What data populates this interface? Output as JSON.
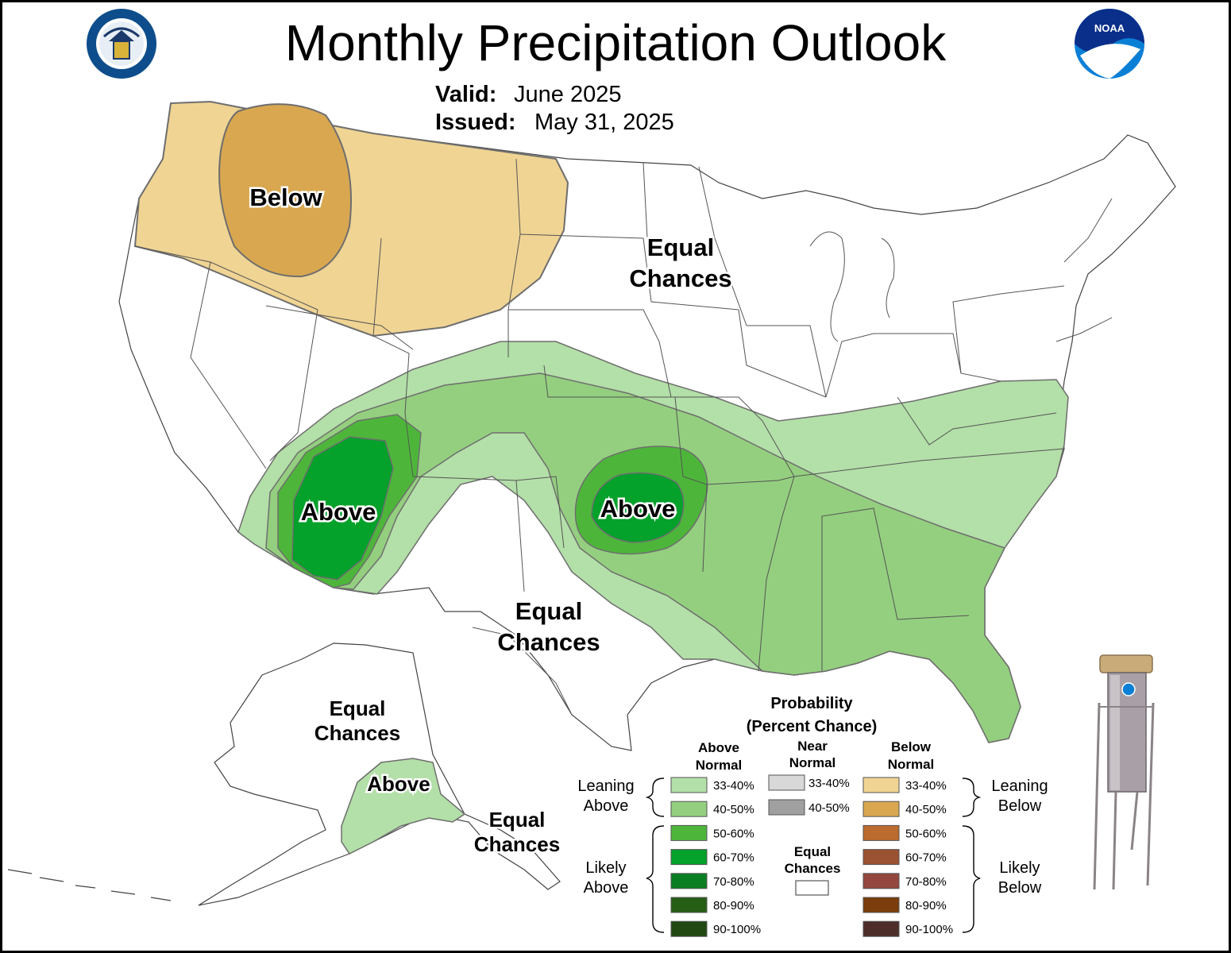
{
  "header": {
    "title": "Monthly Precipitation Outlook",
    "valid_label": "Valid:",
    "valid_value": "June 2025",
    "issued_label": "Issued:",
    "issued_value": "May 31, 2025"
  },
  "logos": {
    "left": "department-of-commerce-seal",
    "right": "noaa-logo",
    "right_text": "NOAA"
  },
  "map_labels": {
    "below_nw": "Below",
    "equal_north_1": "Equal",
    "equal_north_2": "Chances",
    "above_sw": "Above",
    "above_ok": "Above",
    "equal_tx_1": "Equal",
    "equal_tx_2": "Chances",
    "ak_equal_1": "Equal",
    "ak_equal_2": "Chances",
    "ak_above": "Above",
    "ak_equal_se_1": "Equal",
    "ak_equal_se_2": "Chances"
  },
  "legend": {
    "title_1": "Probability",
    "title_2": "(Percent Chance)",
    "above_h1": "Above",
    "above_h2": "Normal",
    "near_h1": "Near",
    "near_h2": "Normal",
    "below_h1": "Below",
    "below_h2": "Normal",
    "leaning_above_1": "Leaning",
    "leaning_above_2": "Above",
    "likely_above_1": "Likely",
    "likely_above_2": "Above",
    "leaning_below_1": "Leaning",
    "leaning_below_2": "Below",
    "likely_below_1": "Likely",
    "likely_below_2": "Below",
    "equal_1": "Equal",
    "equal_2": "Chances",
    "above": [
      {
        "label": "33-40%",
        "color": "#b3dfa8"
      },
      {
        "label": "40-50%",
        "color": "#94cf7f"
      },
      {
        "label": "50-60%",
        "color": "#4db63a"
      },
      {
        "label": "60-70%",
        "color": "#04a12b"
      },
      {
        "label": "70-80%",
        "color": "#0b7e22"
      },
      {
        "label": "80-90%",
        "color": "#275e16"
      },
      {
        "label": "90-100%",
        "color": "#214911"
      }
    ],
    "near": [
      {
        "label": "33-40%",
        "color": "#d8d8d8"
      },
      {
        "label": "40-50%",
        "color": "#a0a0a0"
      }
    ],
    "below": [
      {
        "label": "33-40%",
        "color": "#f0d493"
      },
      {
        "label": "40-50%",
        "color": "#d8a750"
      },
      {
        "label": "50-60%",
        "color": "#bb6b2d"
      },
      {
        "label": "60-70%",
        "color": "#9b5233"
      },
      {
        "label": "70-80%",
        "color": "#93473f"
      },
      {
        "label": "80-90%",
        "color": "#7a3d0b"
      },
      {
        "label": "90-100%",
        "color": "#4e2e28"
      }
    ],
    "equal_color": "#ffffff"
  }
}
